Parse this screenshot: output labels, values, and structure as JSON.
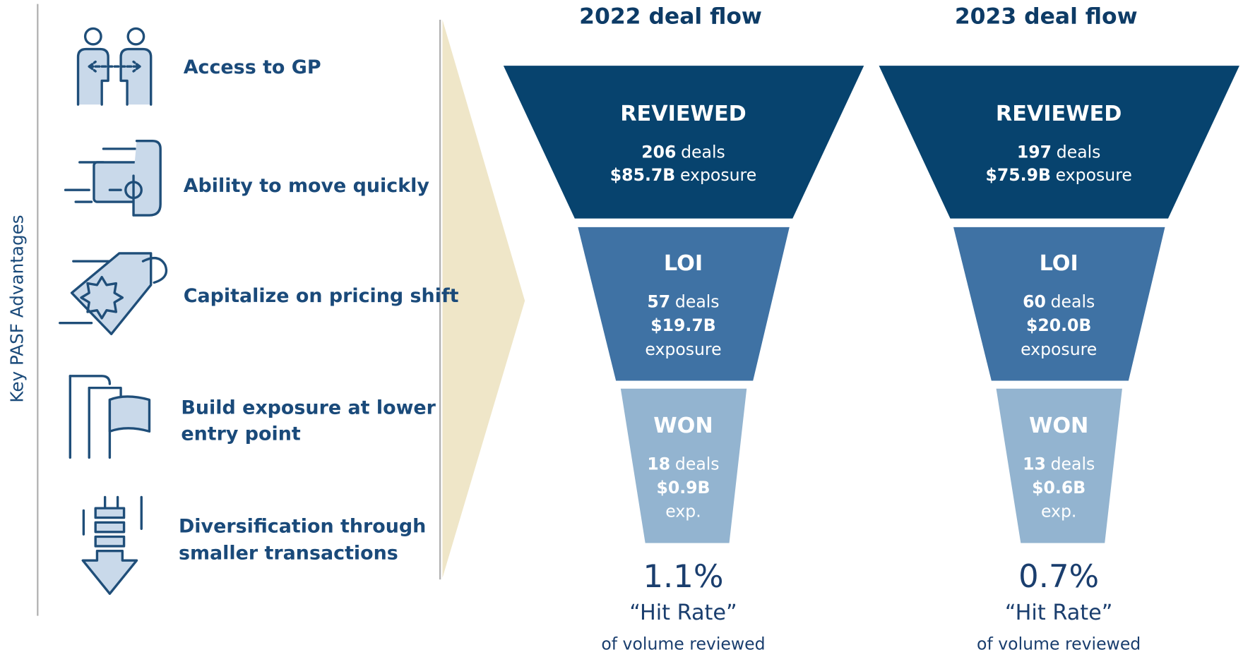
{
  "sidebar_label": "Key PASF Advantages",
  "advantages": [
    {
      "lines": [
        "Access to GP"
      ]
    },
    {
      "lines": [
        "Ability to move quickly"
      ]
    },
    {
      "lines": [
        "Capitalize on pricing shift"
      ]
    },
    {
      "lines": [
        "Build exposure at lower",
        "entry point"
      ]
    },
    {
      "lines": [
        "Diversification through",
        "smaller transactions"
      ]
    }
  ],
  "funnels": [
    {
      "title": "2022 deal flow",
      "stages": [
        {
          "name": "REVIEWED",
          "lines": [
            [
              {
                "text": "206",
                "bold": true
              },
              {
                "text": "deals"
              }
            ],
            [
              {
                "text": "$85.7B",
                "bold": true
              },
              {
                "text": "exposure"
              }
            ]
          ]
        },
        {
          "name": "LOI",
          "lines": [
            [
              {
                "text": "57",
                "bold": true
              },
              {
                "text": "deals"
              }
            ],
            [
              {
                "text": "$19.7B",
                "bold": true
              }
            ],
            [
              {
                "text": "exposure"
              }
            ]
          ]
        },
        {
          "name": "WON",
          "lines": [
            [
              {
                "text": "18",
                "bold": true
              },
              {
                "text": "deals"
              }
            ],
            [
              {
                "text": "$0.9B",
                "bold": true
              }
            ],
            [
              {
                "text": "exp."
              }
            ]
          ]
        }
      ],
      "hit_rate": "1.1%",
      "hit_label": "“Hit Rate”",
      "caption": "of volume reviewed"
    },
    {
      "title": "2023 deal flow",
      "stages": [
        {
          "name": "REVIEWED",
          "lines": [
            [
              {
                "text": "197",
                "bold": true
              },
              {
                "text": "deals"
              }
            ],
            [
              {
                "text": "$75.9B",
                "bold": true
              },
              {
                "text": "exposure"
              }
            ]
          ]
        },
        {
          "name": "LOI",
          "lines": [
            [
              {
                "text": "60",
                "bold": true
              },
              {
                "text": "deals"
              }
            ],
            [
              {
                "text": "$20.0B",
                "bold": true
              }
            ],
            [
              {
                "text": "exposure"
              }
            ]
          ]
        },
        {
          "name": "WON",
          "lines": [
            [
              {
                "text": "13",
                "bold": true
              },
              {
                "text": "deals"
              }
            ],
            [
              {
                "text": "$0.6B",
                "bold": true
              }
            ],
            [
              {
                "text": "exp."
              }
            ]
          ]
        }
      ],
      "hit_rate": "0.7%",
      "hit_label": "“Hit Rate”",
      "caption": "of volume reviewed"
    }
  ]
}
